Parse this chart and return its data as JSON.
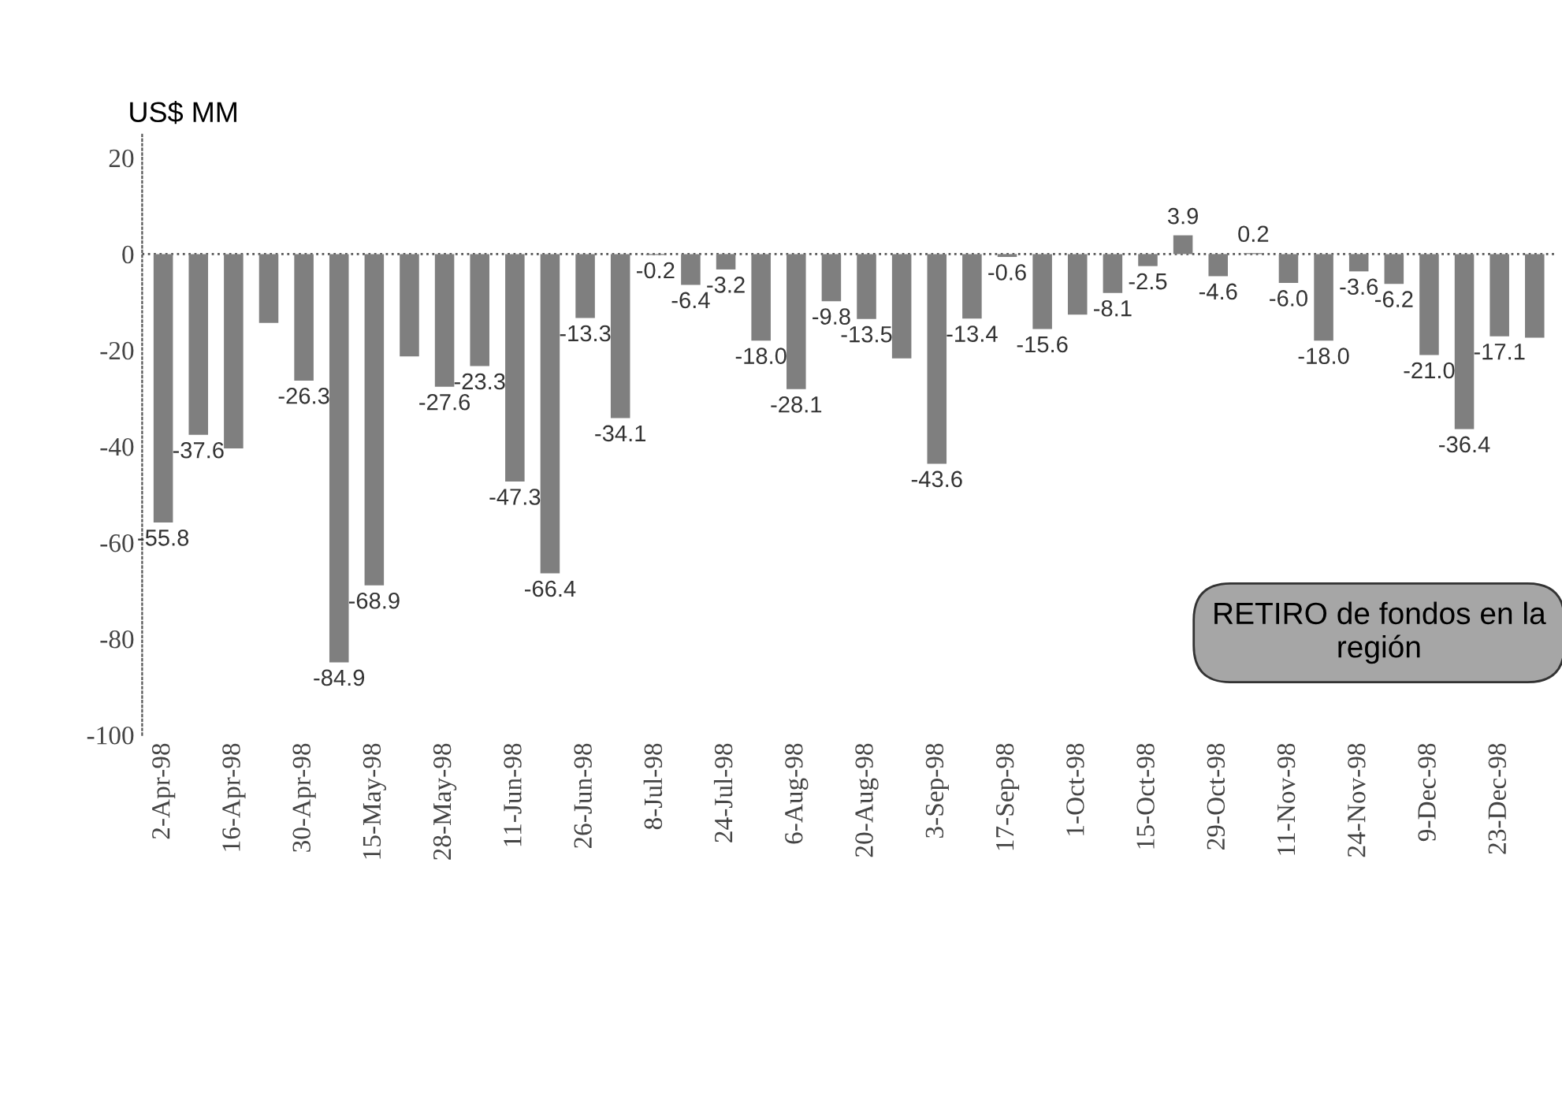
{
  "chart_data": {
    "type": "bar",
    "ylabel": "US$ MM",
    "categories": [
      "2-Apr-98",
      null,
      "16-Apr-98",
      null,
      "30-Apr-98",
      null,
      "15-May-98",
      null,
      "28-May-98",
      null,
      "11-Jun-98",
      null,
      "26-Jun-98",
      null,
      "8-Jul-98",
      null,
      "24-Jul-98",
      null,
      "6-Aug-98",
      null,
      "20-Aug-98",
      null,
      "3-Sep-98",
      null,
      "17-Sep-98",
      null,
      "1-Oct-98",
      null,
      "15-Oct-98",
      null,
      "29-Oct-98",
      null,
      "11-Nov-98",
      null,
      "24-Nov-98",
      null,
      "9-Dec-98",
      null,
      "23-Dec-98",
      null
    ],
    "values": [
      -55.8,
      -37.6,
      -40.4,
      -14.3,
      -26.3,
      -84.9,
      -68.9,
      -21.3,
      -27.6,
      -23.3,
      -47.3,
      -66.4,
      -13.3,
      -34.1,
      -0.2,
      -6.4,
      -3.2,
      -18.0,
      -28.1,
      -9.8,
      -13.5,
      -21.7,
      -43.6,
      -13.4,
      -0.6,
      -15.6,
      -12.6,
      -8.1,
      -2.5,
      3.9,
      -4.6,
      0.2,
      -6.0,
      -18.0,
      -3.6,
      -6.2,
      -21.0,
      -36.4,
      -17.1,
      -17.4
    ],
    "value_labels": [
      "-55.8",
      "-37.6",
      null,
      null,
      "-26.3",
      "-84.9",
      "-68.9",
      null,
      "-27.6",
      "-23.3",
      "-47.3",
      "-66.4",
      "-13.3",
      "-34.1",
      "-0.2",
      "-6.4",
      "-3.2",
      "-18.0",
      "-28.1",
      "-9.8",
      "-13.5",
      null,
      "-43.6",
      "-13.4",
      "-0.6",
      "-15.6",
      null,
      "-8.1",
      "-2.5",
      "3.9",
      "-4.6",
      "0.2",
      "-6.0",
      "-18.0",
      "-3.6",
      "-6.2",
      "-21.0",
      "-36.4",
      "-17.1",
      null
    ],
    "color": "#7f7f7f",
    "ylim": [
      -100,
      25
    ],
    "yticks": [
      -100,
      -80,
      -60,
      -40,
      -20,
      0,
      20
    ],
    "grid": false,
    "ref_lines": [
      {
        "axis": "y",
        "value": 0,
        "line_style": "dotted",
        "color": "#555555"
      }
    ],
    "annotations": [
      "RETIRO de fondos en la región"
    ]
  }
}
